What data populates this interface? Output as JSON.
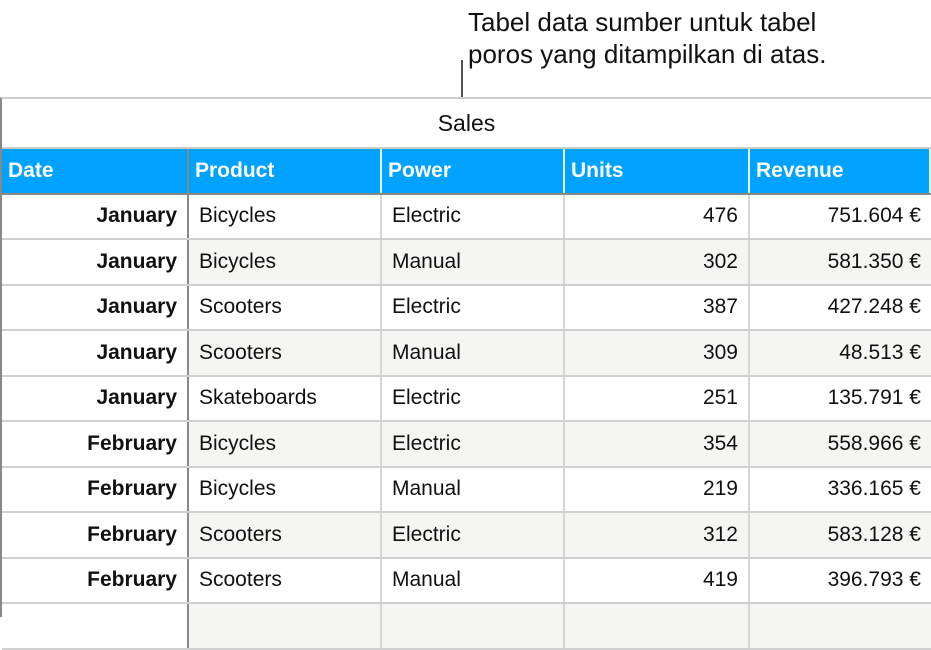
{
  "caption": [
    "Tabel data sumber untuk tabel",
    "poros yang ditampilkan di atas."
  ],
  "table": {
    "title": "Sales",
    "headers": [
      "Date",
      "Product",
      "Power",
      "Units",
      "Revenue"
    ],
    "rows": [
      [
        "January",
        "Bicycles",
        "Electric",
        "476",
        "751.604 €"
      ],
      [
        "January",
        "Bicycles",
        "Manual",
        "302",
        "581.350 €"
      ],
      [
        "January",
        "Scooters",
        "Electric",
        "387",
        "427.248 €"
      ],
      [
        "January",
        "Scooters",
        "Manual",
        "309",
        "48.513 €"
      ],
      [
        "January",
        "Skateboards",
        "Electric",
        "251",
        "135.791 €"
      ],
      [
        "February",
        "Bicycles",
        "Electric",
        "354",
        "558.966 €"
      ],
      [
        "February",
        "Bicycles",
        "Manual",
        "219",
        "336.165 €"
      ],
      [
        "February",
        "Scooters",
        "Electric",
        "312",
        "583.128 €"
      ],
      [
        "February",
        "Scooters",
        "Manual",
        "419",
        "396.793 €"
      ],
      [
        "",
        "",
        "",
        "",
        ""
      ]
    ]
  },
  "colors": {
    "header": "#00a2ff",
    "alt_row": "#f5f5f4"
  }
}
